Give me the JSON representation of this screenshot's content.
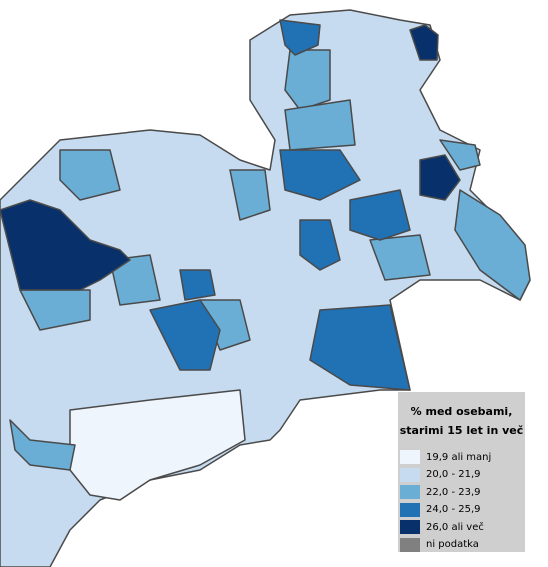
{
  "legend": {
    "title_lines": [
      "% med osebami,",
      "starimi 15 let in več"
    ],
    "items": [
      {
        "label": "19,9 ali manj",
        "color": "#eff5fc"
      },
      {
        "label": "20,0 - 21,9",
        "color": "#c6dbef"
      },
      {
        "label": "22,0 - 23,9",
        "color": "#6aaed6"
      },
      {
        "label": "24,0 - 25,9",
        "color": "#2171b5"
      },
      {
        "label": "26,0 ali več",
        "color": "#08306b"
      },
      {
        "label": "ni podatka",
        "color": "#808080"
      }
    ]
  }
}
